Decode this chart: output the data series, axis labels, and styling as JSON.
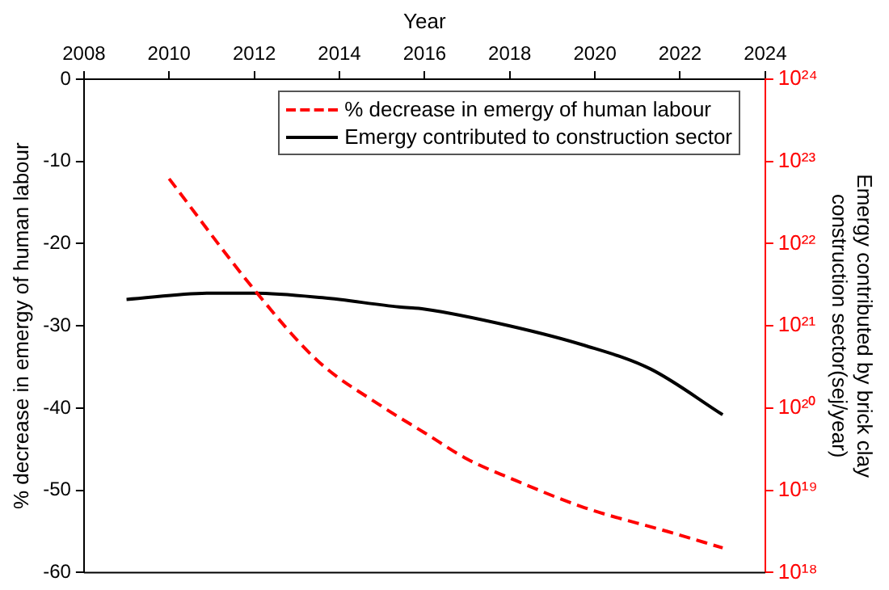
{
  "chart_data": {
    "type": "line",
    "xlabel": "Year",
    "ylabel": "% decrease in emergy of human labour",
    "y2label": "Emergy contributed by brick clay construction sector(sej/year)",
    "xlim": [
      2008,
      2024
    ],
    "xticks": [
      2008,
      2010,
      2012,
      2014,
      2016,
      2018,
      2020,
      2022,
      2024
    ],
    "ylim": [
      -60,
      0
    ],
    "yticks": [
      -60,
      -50,
      -40,
      -30,
      -20,
      -10,
      0
    ],
    "y2lim": [
      1e+18,
      1e+24
    ],
    "y2ticks": [
      {
        "value": 1e+18,
        "label": "10¹⁸"
      },
      {
        "value": 1e+19,
        "label": "10¹⁹"
      },
      {
        "value": 1e+20,
        "label": "10²⁰"
      },
      {
        "value": 1e+21,
        "label": "10²¹"
      },
      {
        "value": 1e+22,
        "label": "10²²"
      },
      {
        "value": 1e+23,
        "label": "10²³"
      },
      {
        "value": 1e+24,
        "label": "10²⁴"
      }
    ],
    "log": "y2",
    "legend": "top right",
    "marker": "none",
    "series": [
      {
        "name": "% decrease in emergy of human labour",
        "color": "#ff0000",
        "line_style": "dashed",
        "x": [
          2010,
          2012,
          2013.5,
          2015,
          2016,
          2017,
          2018,
          2019.75,
          2021.7,
          2023
        ],
        "values": [
          -12.1,
          -25.6,
          -34.3,
          -39.8,
          -43,
          -46.2,
          -48.5,
          -52.1,
          -55,
          -57
        ]
      },
      {
        "name": "Emergy contributed to construction sector",
        "color": "#000000",
        "line_style": "solid",
        "axis": "y2",
        "x": [
          2009,
          2011,
          2012,
          2013.6,
          2015.4,
          2016,
          2018,
          2019.75,
          2021.3,
          2023
        ],
        "values": [
          2.1e+21,
          2.5e+21,
          2.5e+21,
          2.2e+21,
          1.7e+21,
          1.6e+21,
          1e+21,
          5.8e+20,
          3e+20,
          8.3e+19
        ]
      }
    ]
  }
}
